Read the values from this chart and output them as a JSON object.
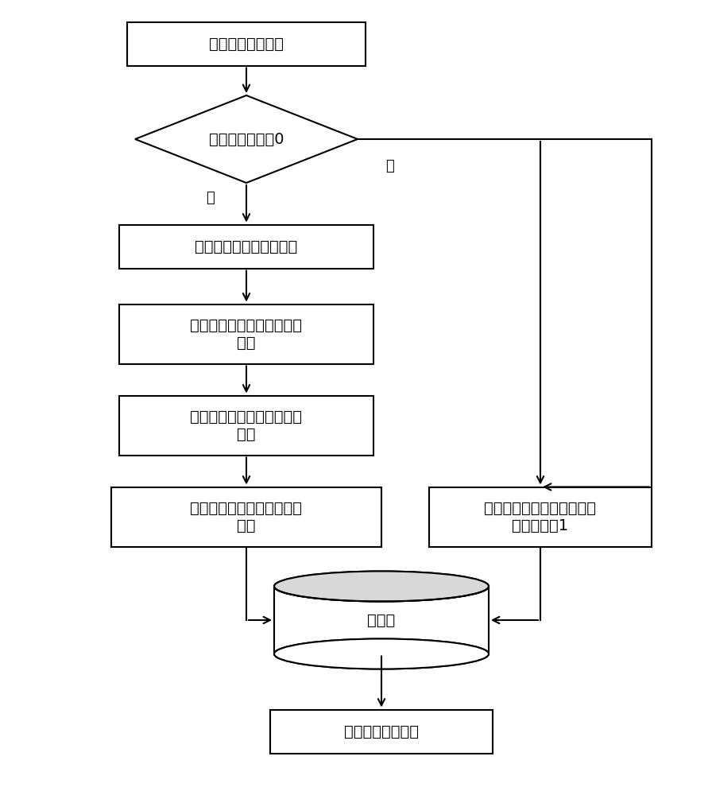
{
  "bg_color": "#ffffff",
  "line_color": "#000000",
  "text_color": "#000000",
  "font_size": 14,
  "label_font_size": 13,
  "start_label": "工艺参数误差向量",
  "diamond_label": "所有误差是否为0",
  "norm1_label": "工艺参数误差向量归一化",
  "match1_line1": "计算各个工艺参数误差的匹",
  "match1_line2": "配度",
  "match2_line1": "计算工艺参数误差向量的匹",
  "match2_line2": "配度",
  "norm2_line1": "工艺参数误差向量匹配度归",
  "norm2_line2": "一化",
  "right_line1": "与数据库中某一工艺参数向",
  "right_line2": "量匹配度为1",
  "db_label": "数据库",
  "end_label": "软测量的微观组织",
  "yes_label": "是",
  "no_label": "否"
}
